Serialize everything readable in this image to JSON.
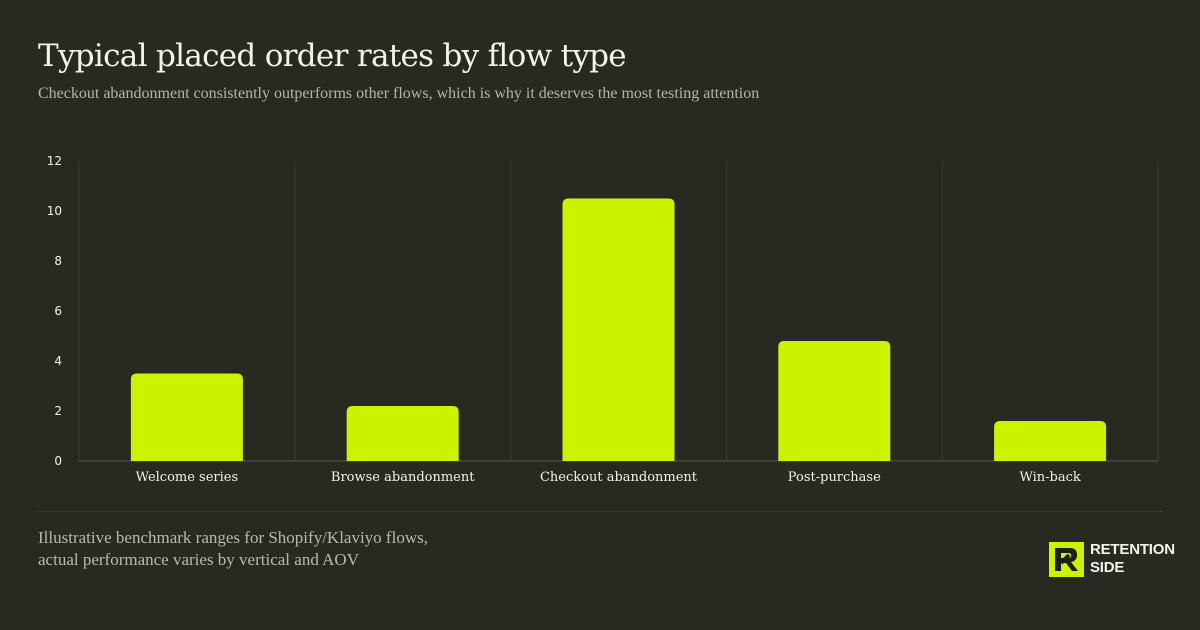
{
  "header": {
    "title": "Typical placed order rates by flow type",
    "subtitle": "Checkout abandonment consistently outperforms other flows, which is why it deserves the most testing attention"
  },
  "footer": {
    "note": "Illustrative benchmark ranges for Shopify/Klaviyo flows, actual performance varies by vertical and AOV",
    "logo": {
      "line1": "RETENTION",
      "line2": "SIDE"
    }
  },
  "colors": {
    "background": "#282a21",
    "bar": "#ccf200",
    "grid": "#3d3f36",
    "text": "#f3f2ec",
    "muted_text": "#b4b4aa"
  },
  "chart_data": {
    "type": "bar",
    "title": "Typical placed order rates by flow type",
    "subtitle": "Checkout abandonment consistently outperforms other flows, which is why it deserves the most testing attention",
    "categories": [
      "Welcome series",
      "Browse abandonment",
      "Checkout abandonment",
      "Post-purchase",
      "Win-back"
    ],
    "values": [
      3.5,
      2.2,
      10.5,
      4.8,
      1.6
    ],
    "xlabel": "",
    "ylabel": "",
    "ylim": [
      0,
      12
    ],
    "yticks": [
      0,
      2,
      4,
      6,
      8,
      10,
      12
    ],
    "grid": "vertical separators between categories",
    "legend": "none"
  }
}
